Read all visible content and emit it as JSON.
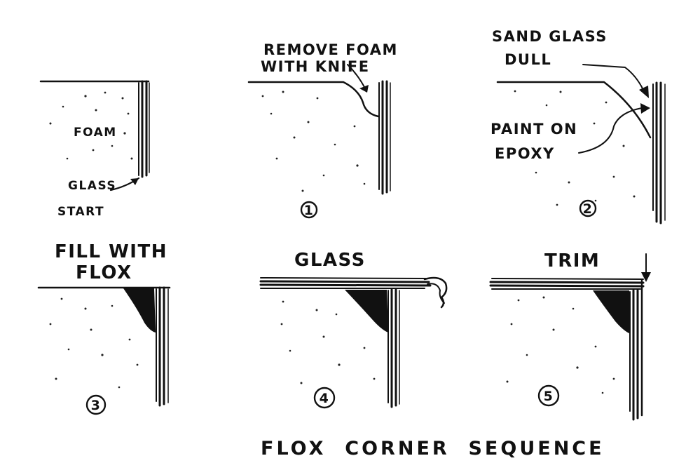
{
  "diagram": {
    "caption": "FLOX  CORNER  SEQUENCE",
    "panels": [
      {
        "id": "start",
        "labels": [
          "FOAM",
          "GLASS",
          "START"
        ]
      },
      {
        "id": "step-1",
        "step": "1",
        "labels": [
          "REMOVE  FOAM",
          "WITH KNIFE"
        ]
      },
      {
        "id": "step-2",
        "step": "2",
        "labels": [
          "SAND GLASS",
          "DULL",
          "PAINT ON",
          "EPOXY"
        ]
      },
      {
        "id": "step-3",
        "step": "3",
        "labels": [
          "FILL WITH",
          "FLOX"
        ]
      },
      {
        "id": "step-4",
        "step": "4",
        "labels": [
          "GLASS"
        ]
      },
      {
        "id": "step-5",
        "step": "5",
        "labels": [
          "TRIM"
        ]
      }
    ]
  },
  "colors": {
    "ink": "#111111",
    "background": "#ffffff"
  }
}
